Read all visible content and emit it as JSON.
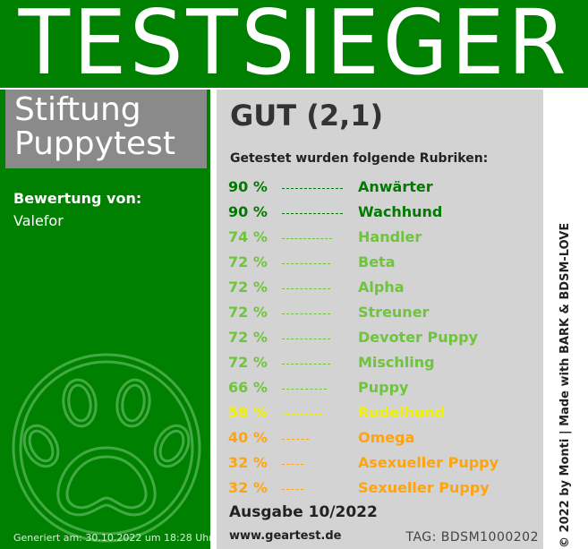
{
  "banner": {
    "title": "TESTSIEGER"
  },
  "organization": {
    "name": "Stiftung\nPuppytest"
  },
  "rater": {
    "label": "Bewertung von:",
    "name": "Valefor"
  },
  "footer_left": {
    "generated": "Generiert am: 30.10.2022 um 18:28 Uhr"
  },
  "result": {
    "grade": "GUT (2,1)",
    "categories_intro": "Getestet wurden folgende Rubriken:",
    "categories": [
      {
        "percent_text": "90 %",
        "percent": 90,
        "label": "Anwärter",
        "color": "#007a00"
      },
      {
        "percent_text": "90 %",
        "percent": 90,
        "label": "Wachhund",
        "color": "#007a00"
      },
      {
        "percent_text": "74 %",
        "percent": 74,
        "label": "Handler",
        "color": "#6ec53c"
      },
      {
        "percent_text": "72 %",
        "percent": 72,
        "label": "Beta",
        "color": "#6ec53c"
      },
      {
        "percent_text": "72 %",
        "percent": 72,
        "label": "Alpha",
        "color": "#6ec53c"
      },
      {
        "percent_text": "72 %",
        "percent": 72,
        "label": "Streuner",
        "color": "#6ec53c"
      },
      {
        "percent_text": "72 %",
        "percent": 72,
        "label": "Devoter Puppy",
        "color": "#6ec53c"
      },
      {
        "percent_text": "72 %",
        "percent": 72,
        "label": "Mischling",
        "color": "#6ec53c"
      },
      {
        "percent_text": "66 %",
        "percent": 66,
        "label": "Puppy",
        "color": "#6ec53c"
      },
      {
        "percent_text": "58 %",
        "percent": 58,
        "label": "Rudelhund",
        "color": "#f2f200"
      },
      {
        "percent_text": "40 %",
        "percent": 40,
        "label": "Omega",
        "color": "#ffa40d"
      },
      {
        "percent_text": "32 %",
        "percent": 32,
        "label": "Asexueller Puppy",
        "color": "#ffa40d"
      },
      {
        "percent_text": "32 %",
        "percent": 32,
        "label": "Sexueller Puppy",
        "color": "#ffa40d"
      }
    ],
    "issue": "Ausgabe 10/2022",
    "website": "www.geartest.de",
    "tag": "TAG: BDSM1000202"
  },
  "credit": "© 2022 by Monti | Made with BARK & BDSM-LOVE",
  "icons": {
    "paw": "paw-print-icon"
  },
  "colors": {
    "banner_green": "#008000",
    "panel_gray": "#d3d3d3",
    "org_gray": "#8a8a8a"
  }
}
